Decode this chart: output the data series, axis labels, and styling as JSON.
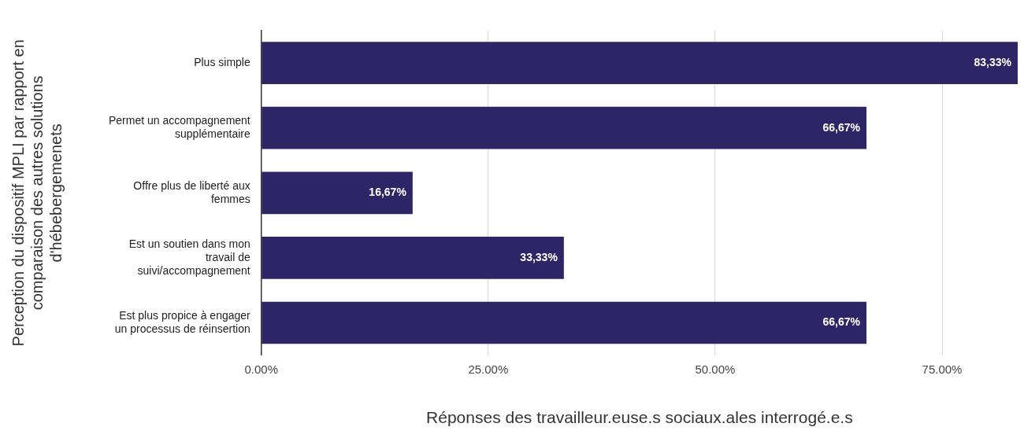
{
  "chart_data": {
    "type": "bar",
    "orientation": "horizontal",
    "xlabel": "Réponses des travailleur.euse.s sociaux.ales interrogé.e.s",
    "ylabel": "Perception du dispositif MPLI par rapport en comparaison des autres solutions d'hébebergemenets",
    "categories": [
      "Plus simple",
      "Permet un accompagnement supplémentaire",
      "Offre plus de liberté aux femmes",
      "Est un soutien dans mon travail de suivi/accompagnement",
      "Est plus propice à engager un processus de réinsertion"
    ],
    "values": [
      83.33,
      66.67,
      16.67,
      33.33,
      66.67
    ],
    "value_labels": [
      "83,33%",
      "66,67%",
      "16,67%",
      "33,33%",
      "66,67%"
    ],
    "color": "#2e2566",
    "xlim": [
      0,
      83.33
    ],
    "xticks": [
      {
        "value": 0,
        "label": "0.00%"
      },
      {
        "value": 25,
        "label": "25.00%"
      },
      {
        "value": 50,
        "label": "50.00%"
      },
      {
        "value": 75,
        "label": "75.00%"
      }
    ],
    "grid": "x",
    "legend": false
  }
}
